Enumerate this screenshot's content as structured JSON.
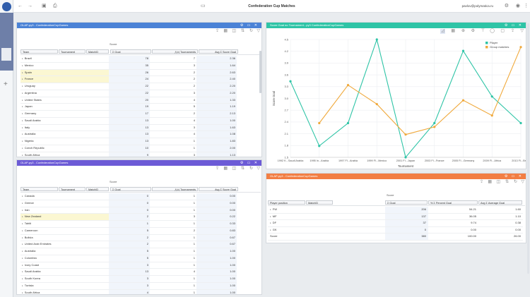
{
  "app": {
    "title": "Confederation Cup Matches",
    "user": "pavlov@polymatica.ru"
  },
  "colors": {
    "teal": "#2ec4a6",
    "orange": "#f0a93c",
    "blue": "#4a82d6",
    "purple": "#6c5bd6",
    "salmon": "#f27e43"
  },
  "panel1": {
    "title": "OLAP-py3 - ConfederationCupGames",
    "measure_group": "Score",
    "columns": [
      "Team",
      "Tournament",
      "MatchID"
    ],
    "measures": [
      "Σ Goal",
      "ƒ(𝑥) Tournaments",
      "Avg Σ Score Goal"
    ],
    "rows": [
      [
        "Brazil",
        "78",
        "7",
        "2.36"
      ],
      [
        "Mexico",
        "35",
        "3",
        "1.64"
      ],
      [
        "Spain",
        "26",
        "2",
        "2.63"
      ],
      [
        "France",
        "24",
        "2",
        "2.40"
      ],
      [
        "Uruguay",
        "22",
        "2",
        "2.20"
      ],
      [
        "Argentina",
        "22",
        "3",
        "2.20"
      ],
      [
        "United States",
        "20",
        "4",
        "1.33"
      ],
      [
        "Japan",
        "19",
        "5",
        "1.19"
      ],
      [
        "Germany",
        "17",
        "2",
        "2.13"
      ],
      [
        "Saudi Arabia",
        "13",
        "4",
        "1.00"
      ],
      [
        "Italy",
        "13",
        "3",
        "1.63"
      ],
      [
        "Australia",
        "13",
        "4",
        "1.08"
      ],
      [
        "Nigeria",
        "13",
        "1",
        "1.83"
      ],
      [
        "Czech Republic",
        "10",
        "1",
        "2.00"
      ],
      [
        "South Africa",
        "9",
        "3",
        "1.13"
      ]
    ]
  },
  "panel2": {
    "title": "OLAP-py3 - ConfederationCupGames",
    "measure_group": "Score",
    "columns": [
      "Team",
      "Tournament",
      "MatchID"
    ],
    "measures": [
      "Σ Goal",
      "ƒ(𝑥) Tournaments",
      "Avg Σ Score Goal"
    ],
    "rows": [
      [
        "Canada",
        "0",
        "1",
        "0.00"
      ],
      [
        "Greece",
        "0",
        "1",
        "0.00"
      ],
      [
        "Iran",
        "0",
        "1",
        "0.00"
      ],
      [
        "New Zealand",
        "2",
        "3",
        "0.22"
      ],
      [
        "Tahiti",
        "1",
        "1",
        "0.33"
      ],
      [
        "Cameroon",
        "5",
        "2",
        "0.83"
      ],
      [
        "Bolivia",
        "2",
        "1",
        "0.67"
      ],
      [
        "United Arab Emirates",
        "2",
        "1",
        "0.67"
      ],
      [
        "Australia",
        "5",
        "1",
        "1.00"
      ],
      [
        "Colombia",
        "5",
        "1",
        "1.00"
      ],
      [
        "Ivory Coast",
        "3",
        "1",
        "1.00"
      ],
      [
        "Saudi Arabia",
        "13",
        "4",
        "1.00"
      ],
      [
        "South Korea",
        "3",
        "1",
        "1.00"
      ],
      [
        "Tunisia",
        "3",
        "1",
        "1.00"
      ],
      [
        "South Africa",
        "4",
        "1",
        "1.00"
      ]
    ]
  },
  "panel3": {
    "title": "Score Goal по Tournament - py3 ConfederationCupGames"
  },
  "panel4": {
    "title": "OLAP-py3 - ConfederationCupGames",
    "measure_group": "Score",
    "columns": [
      "Player position",
      "MatchID"
    ],
    "measures": [
      "Σ Goal",
      "% Σ Percent Goal",
      "Avg Σ Average Goal"
    ],
    "rows": [
      [
        "FW",
        "206",
        "54.21",
        "1.60"
      ],
      [
        "MF",
        "137",
        "36.05",
        "1.10"
      ],
      [
        "DF",
        "37",
        "9.74",
        "0.38"
      ],
      [
        "GK",
        "0",
        "0.00",
        "0.00"
      ]
    ],
    "total": [
      "Score",
      "380",
      "100.00",
      "26.00"
    ]
  },
  "chart_data": {
    "type": "line",
    "title": "Score Goal по Tournament - py3 ConfederationCupGames",
    "xlabel": "Tournament",
    "ylabel": "Score Goal",
    "categories": [
      "1992 K...Saudi Arabia",
      "1995 In...Arabia",
      "1997 FI...Arabia",
      "1999 FI...Mexico",
      "2001 FI...Japan",
      "2003 FI...France",
      "2005 FI...Germany",
      "2009 FI...Africa",
      "2013 FI...Brazil"
    ],
    "ylim": [
      1.6,
      4.7
    ],
    "yticks": [
      "1.5",
      "1.8",
      "2.1",
      "2.4",
      "2.7",
      "3.0",
      "3.3",
      "3.6",
      "3.9",
      "4.2",
      "4.5"
    ],
    "series": [
      {
        "name": "Player",
        "color": "#2ec4a6",
        "values": [
          3.6,
          1.9,
          2.5,
          4.7,
          1.6,
          2.5,
          4.4,
          3.2,
          2.5
        ]
      },
      {
        "name": "Group matches",
        "color": "#f0a93c",
        "values": [
          null,
          2.5,
          3.5,
          3.0,
          2.2,
          2.4,
          3.1,
          2.7,
          4.5
        ]
      }
    ],
    "legend": "top-right",
    "grid": true
  }
}
